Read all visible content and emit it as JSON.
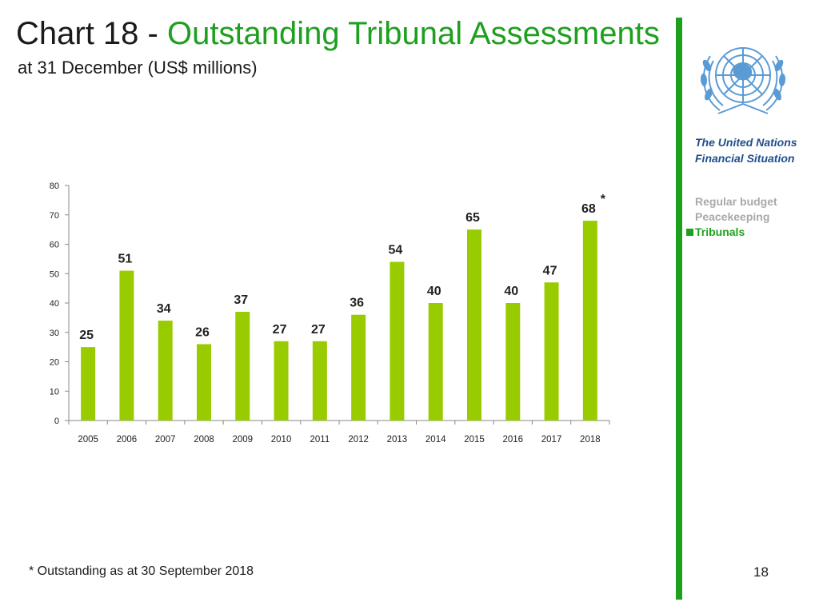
{
  "header": {
    "title_prefix": "Chart 18 - ",
    "title_main": "Outstanding Tribunal Assessments",
    "subtitle": "at 31 December (US$ millions)"
  },
  "sidebar": {
    "title_line1": "The United Nations",
    "title_line2": "Financial Situation",
    "menu": [
      {
        "label": "Regular budget",
        "active": false
      },
      {
        "label": "Peacekeeping",
        "active": false
      },
      {
        "label": "Tribunals",
        "active": true
      }
    ]
  },
  "footer": {
    "footnote": "* Outstanding as at 30 September 2018",
    "page_number": "18"
  },
  "colors": {
    "bar": "#99cc00",
    "accent": "#1ea01e",
    "sidebar_title": "#1f4e8c",
    "menu_inactive": "#a9a9a9",
    "logo": "#5b9bd5"
  },
  "icons": {
    "logo": "un-emblem-icon"
  },
  "chart_data": {
    "type": "bar",
    "categories": [
      "2005",
      "2006",
      "2007",
      "2008",
      "2009",
      "2010",
      "2011",
      "2012",
      "2013",
      "2014",
      "2015",
      "2016",
      "2017",
      "2018"
    ],
    "values": [
      25,
      51,
      34,
      26,
      37,
      27,
      27,
      36,
      54,
      40,
      65,
      40,
      47,
      68
    ],
    "data_labels": [
      "25",
      "51",
      "34",
      "26",
      "37",
      "27",
      "27",
      "36",
      "54",
      "40",
      "65",
      "40",
      "47",
      "68"
    ],
    "annotations": [
      {
        "category": "2018",
        "text": "*"
      }
    ],
    "yticks": [
      "0",
      "10",
      "20",
      "30",
      "40",
      "50",
      "60",
      "70",
      "80"
    ],
    "ylim": [
      0,
      80
    ],
    "grid": false,
    "legend": false
  }
}
